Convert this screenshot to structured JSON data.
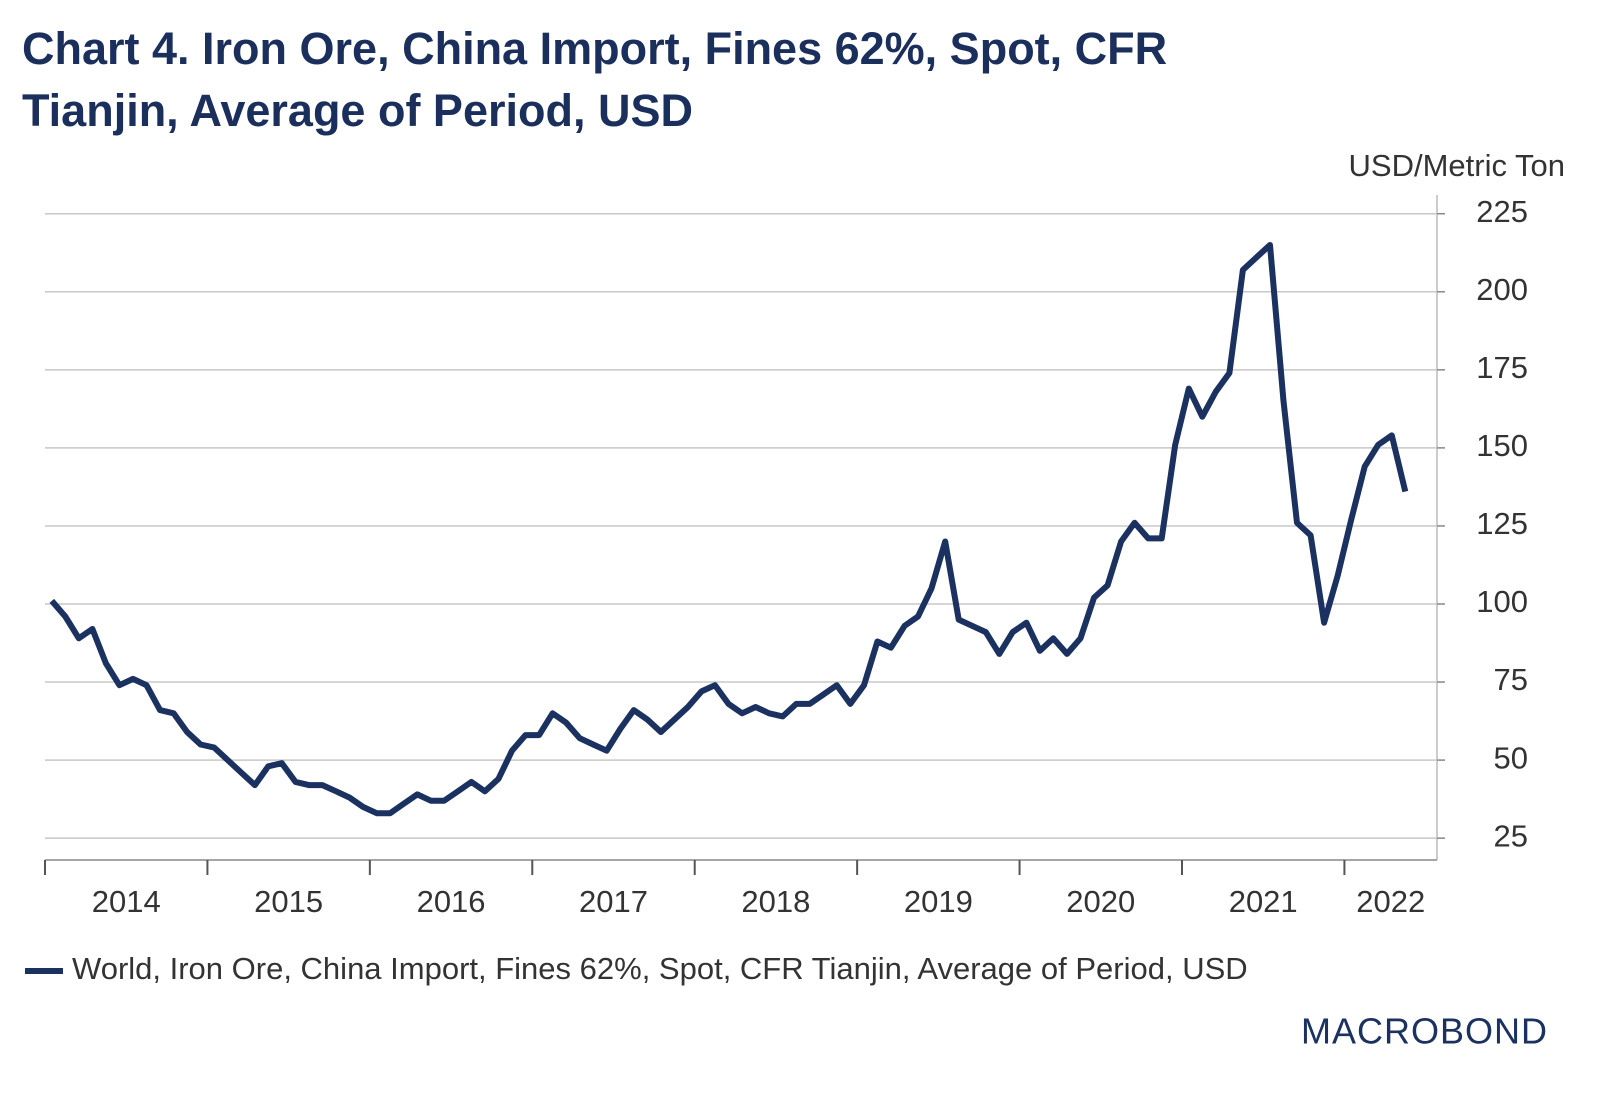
{
  "chart_data": {
    "type": "line",
    "title": "Chart 4. Iron Ore, China Import, Fines 62%, Spot, CFR Tianjin, Average of Period, USD",
    "y_axis_label": "USD/Metric Ton",
    "logo": "MACROBOND",
    "x": [
      2014.042,
      2014.125,
      2014.208,
      2014.292,
      2014.375,
      2014.458,
      2014.542,
      2014.625,
      2014.708,
      2014.792,
      2014.875,
      2014.958,
      2015.042,
      2015.125,
      2015.208,
      2015.292,
      2015.375,
      2015.458,
      2015.542,
      2015.625,
      2015.708,
      2015.792,
      2015.875,
      2015.958,
      2016.042,
      2016.125,
      2016.208,
      2016.292,
      2016.375,
      2016.458,
      2016.542,
      2016.625,
      2016.708,
      2016.792,
      2016.875,
      2016.958,
      2017.042,
      2017.125,
      2017.208,
      2017.292,
      2017.375,
      2017.458,
      2017.542,
      2017.625,
      2017.708,
      2017.792,
      2017.875,
      2017.958,
      2018.042,
      2018.125,
      2018.208,
      2018.292,
      2018.375,
      2018.458,
      2018.542,
      2018.625,
      2018.708,
      2018.792,
      2018.875,
      2018.958,
      2019.042,
      2019.125,
      2019.208,
      2019.292,
      2019.375,
      2019.458,
      2019.542,
      2019.625,
      2019.708,
      2019.792,
      2019.875,
      2019.958,
      2020.042,
      2020.125,
      2020.208,
      2020.292,
      2020.375,
      2020.458,
      2020.542,
      2020.625,
      2020.708,
      2020.792,
      2020.875,
      2020.958,
      2021.042,
      2021.125,
      2021.208,
      2021.292,
      2021.375,
      2021.458,
      2021.542,
      2021.625,
      2021.708,
      2021.792,
      2021.875,
      2021.958,
      2022.042,
      2022.125,
      2022.208,
      2022.292,
      2022.375
    ],
    "series": [
      {
        "name": "World, Iron Ore, China Import, Fines 62%, Spot, CFR Tianjin, Average of Period, USD",
        "color": "#1b3160",
        "values": [
          101,
          96,
          89,
          92,
          81,
          74,
          76,
          74,
          66,
          65,
          59,
          55,
          54,
          50,
          46,
          42,
          48,
          49,
          43,
          42,
          42,
          40,
          38,
          35,
          33,
          33,
          36,
          39,
          37,
          37,
          40,
          43,
          40,
          44,
          53,
          58,
          58,
          65,
          62,
          57,
          55,
          53,
          60,
          66,
          63,
          59,
          63,
          67,
          72,
          74,
          68,
          65,
          67,
          65,
          64,
          68,
          68,
          71,
          74,
          68,
          74,
          88,
          86,
          93,
          96,
          105,
          120,
          95,
          93,
          91,
          84,
          91,
          94,
          85,
          89,
          84,
          89,
          102,
          106,
          120,
          126,
          121,
          121,
          151,
          169,
          160,
          168,
          174,
          207,
          211,
          215,
          165,
          126,
          122,
          94,
          109,
          127,
          144,
          151,
          154,
          136
        ]
      }
    ],
    "xlim": [
      2014,
      2022.57
    ],
    "xticks": [
      2014,
      2015,
      2016,
      2017,
      2018,
      2019,
      2020,
      2021,
      2022
    ],
    "ylim": [
      18,
      231
    ],
    "yticks": [
      25,
      50,
      75,
      100,
      125,
      150,
      175,
      200,
      225
    ],
    "grid": true
  }
}
